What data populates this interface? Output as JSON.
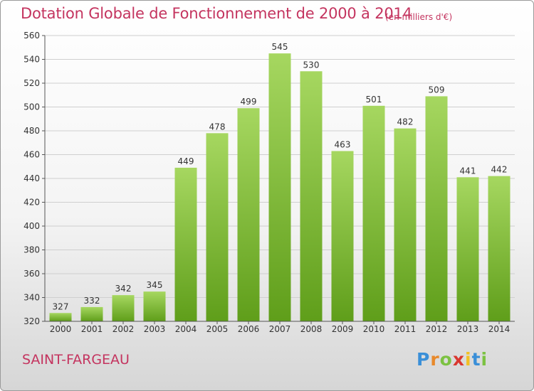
{
  "header": {
    "title": "Dotation Globale de Fonctionnement de 2000 à 2014",
    "unit": "(en milliers d'€)"
  },
  "footer": {
    "commune": "SAINT-FARGEAU",
    "logo_letters": [
      {
        "char": "P",
        "color": "#3a8fd8"
      },
      {
        "char": "r",
        "color": "#e8892b"
      },
      {
        "char": "o",
        "color": "#7cc242"
      },
      {
        "char": "x",
        "color": "#d9372f"
      },
      {
        "char": "i",
        "color": "#f2c024"
      },
      {
        "char": "t",
        "color": "#3a8fd8"
      },
      {
        "char": "i",
        "color": "#7cc242"
      }
    ]
  },
  "colors": {
    "title": "#c4345f",
    "bar_top": "#a6d760",
    "bar_bottom": "#5f9e1a",
    "grid": "#cfcfcf"
  },
  "chart_data": {
    "type": "bar",
    "title": "Dotation Globale de Fonctionnement de 2000 à 2014",
    "subtitle": "(en milliers d'€)",
    "categories": [
      "2000",
      "2001",
      "2002",
      "2003",
      "2004",
      "2005",
      "2006",
      "2007",
      "2008",
      "2009",
      "2010",
      "2011",
      "2012",
      "2013",
      "2014"
    ],
    "values": [
      327,
      332,
      342,
      345,
      449,
      478,
      499,
      545,
      530,
      463,
      501,
      482,
      509,
      441,
      442
    ],
    "ylim": [
      320,
      560
    ],
    "yticks": [
      320,
      340,
      360,
      380,
      400,
      420,
      440,
      460,
      480,
      500,
      520,
      540,
      560
    ],
    "grid": true,
    "legend": "none"
  }
}
